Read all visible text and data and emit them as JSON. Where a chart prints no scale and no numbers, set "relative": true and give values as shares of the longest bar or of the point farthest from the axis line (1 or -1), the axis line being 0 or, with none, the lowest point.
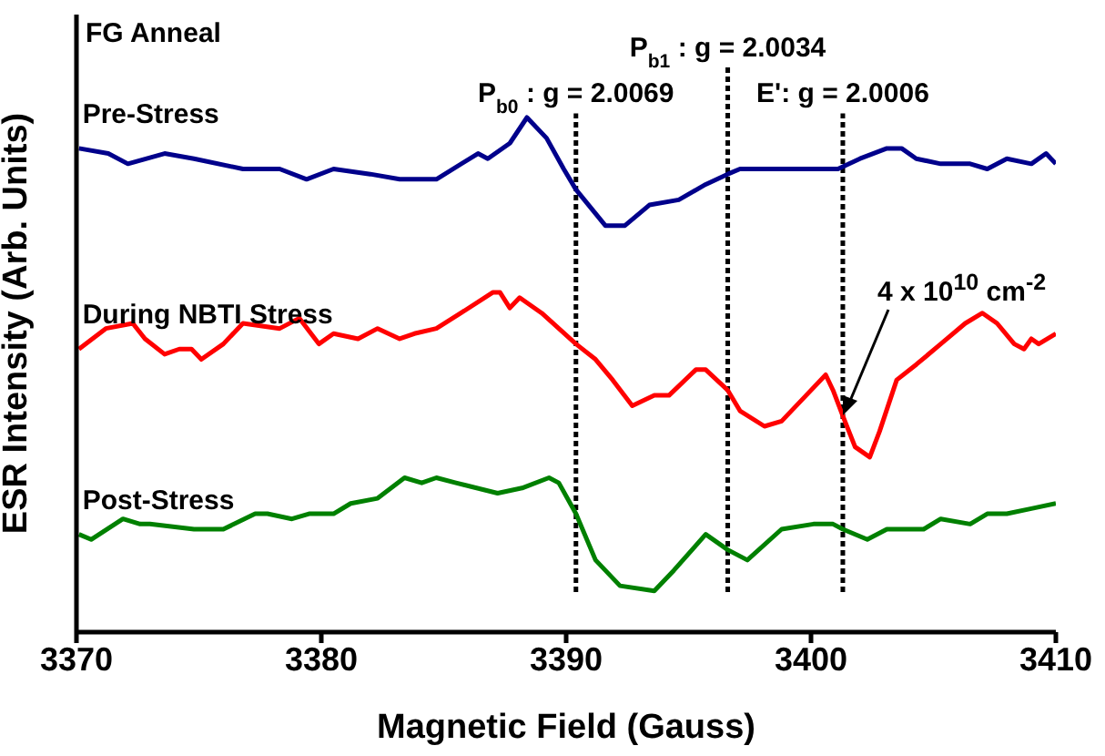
{
  "chart_data": {
    "type": "line",
    "relative": true,
    "xlabel": "Magnetic Field (Gauss)",
    "ylabel": "ESR Intensity (Arb. Units)",
    "xlim": [
      3370,
      3410
    ],
    "xticks": [
      3370,
      3380,
      3390,
      3400,
      3410
    ],
    "tick_labels": "x",
    "grid": false,
    "legend": false,
    "marker": "none",
    "line_style": "solid",
    "annotations": [
      "FG Anneal",
      "P$_{b0}$: g = 2.0069",
      "P$_{b1}$: g = 2.0034",
      "E': g = 2.0006",
      "4 x 10$^{10}$ cm$^{-2}$"
    ],
    "ref_lines": [
      {
        "axis": "x",
        "value": 3390.4,
        "color": "#000000",
        "line_style": "dotted"
      },
      {
        "axis": "x",
        "value": 3396.6,
        "color": "#000000",
        "line_style": "dotted"
      },
      {
        "axis": "x",
        "value": 3401.3,
        "color": "#000000",
        "line_style": "dotted"
      }
    ],
    "series": [
      {
        "name": "Pre-Stress",
        "color": "#00008b",
        "x": [
          3370.1,
          3371.3,
          3372.1,
          3373.6,
          3374.8,
          3376.8,
          3378.3,
          3379.4,
          3380.5,
          3382.0,
          3383.2,
          3384.7,
          3386.4,
          3386.8,
          3387.7,
          3388.4,
          3389.2,
          3389.9,
          3390.4,
          3391.6,
          3392.4,
          3393.4,
          3394.6,
          3395.7,
          3396.6,
          3397.1,
          3398.3,
          3398.8,
          3401.1,
          3402.0,
          3403.1,
          3403.7,
          3404.3,
          3405.3,
          3406.5,
          3407.2,
          3408.0,
          3409.0,
          3409.6,
          3410.0
        ],
        "values": [
          0.94,
          0.93,
          0.91,
          0.93,
          0.92,
          0.9,
          0.9,
          0.88,
          0.9,
          0.89,
          0.88,
          0.88,
          0.93,
          0.92,
          0.95,
          1,
          0.96,
          0.9,
          0.86,
          0.79,
          0.79,
          0.83,
          0.84,
          0.87,
          0.89,
          0.9,
          0.9,
          0.9,
          0.9,
          0.92,
          0.94,
          0.94,
          0.92,
          0.91,
          0.91,
          0.9,
          0.92,
          0.91,
          0.93,
          0.91
        ]
      },
      {
        "name": "During NBTI Stress",
        "color": "#ff0000",
        "x": [
          3370.1,
          3371.2,
          3372.3,
          3372.8,
          3373.6,
          3374.2,
          3374.7,
          3375.1,
          3376.0,
          3376.8,
          3378.3,
          3379.1,
          3379.9,
          3380.5,
          3381.5,
          3382.3,
          3383.2,
          3383.8,
          3384.7,
          3385.7,
          3387.0,
          3387.3,
          3387.7,
          3388.1,
          3389.0,
          3390.4,
          3391.2,
          3391.9,
          3392.7,
          3393.6,
          3394.2,
          3395.3,
          3395.7,
          3396.6,
          3397.1,
          3398.1,
          3398.8,
          3399.8,
          3400.6,
          3400.9,
          3401.3,
          3401.8,
          3402.4,
          3402.8,
          3403.5,
          3404.3,
          3405.3,
          3406.3,
          3407.0,
          3407.6,
          3408.3,
          3408.7,
          3409.0,
          3409.3,
          3410.0
        ],
        "values": [
          0.55,
          0.59,
          0.6,
          0.57,
          0.54,
          0.55,
          0.55,
          0.53,
          0.56,
          0.6,
          0.59,
          0.61,
          0.56,
          0.58,
          0.57,
          0.59,
          0.57,
          0.58,
          0.59,
          0.62,
          0.66,
          0.66,
          0.63,
          0.65,
          0.62,
          0.56,
          0.53,
          0.49,
          0.44,
          0.46,
          0.46,
          0.51,
          0.51,
          0.47,
          0.43,
          0.4,
          0.41,
          0.46,
          0.5,
          0.47,
          0.42,
          0.36,
          0.34,
          0.39,
          0.49,
          0.52,
          0.56,
          0.6,
          0.62,
          0.6,
          0.56,
          0.55,
          0.57,
          0.56,
          0.58
        ]
      },
      {
        "name": "Post-Stress",
        "color": "#008000",
        "x": [
          3370.1,
          3370.6,
          3371.9,
          3372.6,
          3373.0,
          3374.8,
          3376.0,
          3377.3,
          3377.8,
          3378.8,
          3379.5,
          3380.5,
          3381.2,
          3382.3,
          3383.4,
          3384.1,
          3384.7,
          3385.5,
          3387.2,
          3388.2,
          3389.3,
          3389.7,
          3390.4,
          3391.2,
          3392.2,
          3393.6,
          3394.4,
          3395.7,
          3396.6,
          3397.4,
          3398.8,
          3400.1,
          3400.9,
          3401.3,
          3402.3,
          3403.1,
          3404.6,
          3405.3,
          3406.5,
          3407.2,
          3408.0,
          3409.0,
          3410.0
        ],
        "values": [
          0.19,
          0.18,
          0.22,
          0.21,
          0.21,
          0.2,
          0.2,
          0.23,
          0.23,
          0.22,
          0.23,
          0.23,
          0.25,
          0.26,
          0.3,
          0.29,
          0.3,
          0.29,
          0.27,
          0.28,
          0.3,
          0.29,
          0.23,
          0.14,
          0.09,
          0.08,
          0.12,
          0.19,
          0.16,
          0.14,
          0.2,
          0.21,
          0.21,
          0.2,
          0.18,
          0.2,
          0.2,
          0.22,
          0.21,
          0.23,
          0.23,
          0.24,
          0.25
        ]
      }
    ]
  }
}
